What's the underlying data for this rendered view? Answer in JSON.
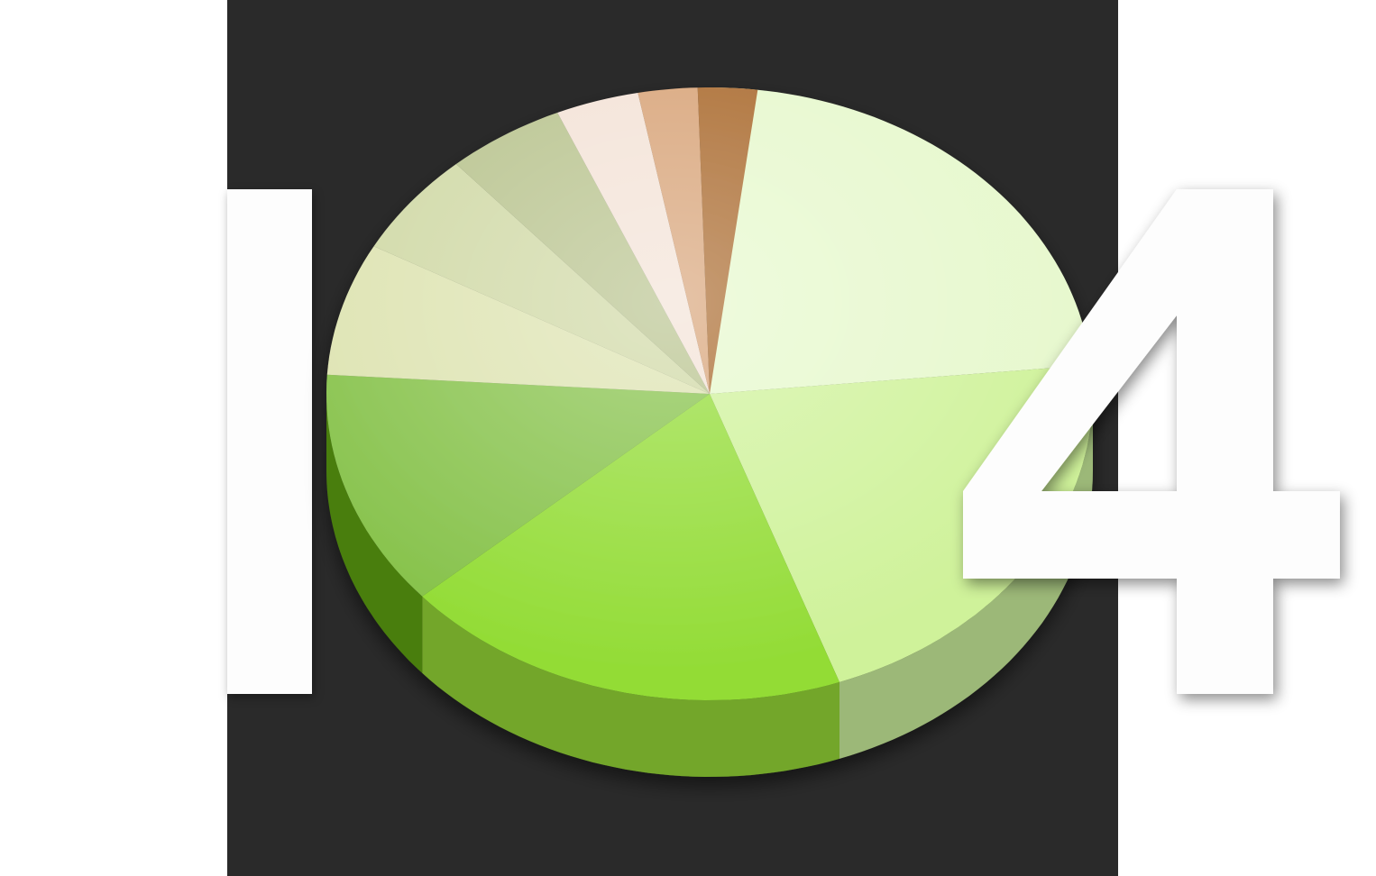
{
  "graphic": {
    "background_color": "#ffffff",
    "panel_color": "#2a2a2a",
    "glyph_color": "#fdfdfd",
    "glyph_shapes": [
      "vertical-bar",
      "numeral-four"
    ]
  },
  "pie": {
    "style": "3d",
    "slices": [
      {
        "fraction": 0.235,
        "top_color": "#e6f8cc",
        "side_color": "#9cb878"
      },
      {
        "fraction": 0.21,
        "top_color": "#cff29a",
        "side_color": "#9cb878"
      },
      {
        "fraction": 0.19,
        "top_color": "#93dc36",
        "side_color": "#73a62c"
      },
      {
        "fraction": 0.125,
        "top_color": "#86c24a",
        "side_color": "#4a7e0e"
      },
      {
        "fraction": 0.07,
        "top_color": "#dde3b0",
        "side_color": "#9aa26a"
      },
      {
        "fraction": 0.055,
        "top_color": "#cfd8a4",
        "side_color": "#9aa26a"
      },
      {
        "fraction": 0.05,
        "top_color": "#b7c28c",
        "side_color": "#8a9460"
      },
      {
        "fraction": 0.035,
        "top_color": "#f3e2d6",
        "side_color": "#c8b0a0"
      },
      {
        "fraction": 0.025,
        "top_color": "#d7a276",
        "side_color": "#a07050"
      },
      {
        "fraction": 0.025,
        "top_color": "#a8672a",
        "side_color": "#7a4a1c"
      }
    ]
  }
}
